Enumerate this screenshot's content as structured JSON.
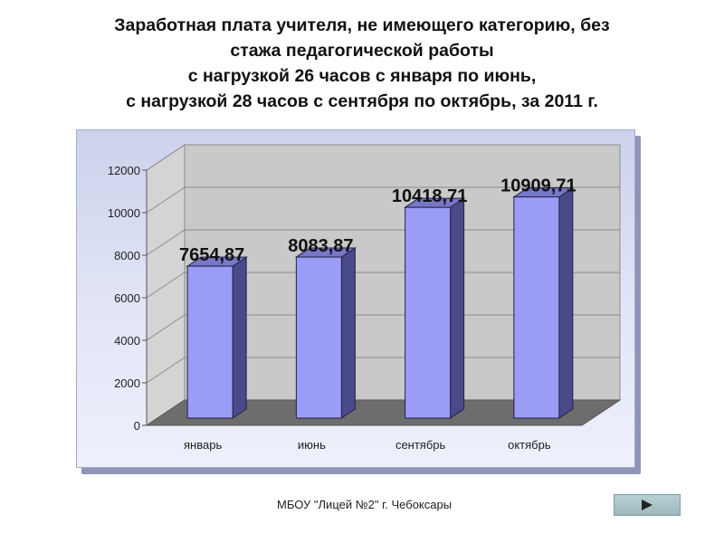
{
  "title_lines": [
    "Заработная плата учителя, не имеющего  категорию, без",
    "стажа педагогической работы",
    "с нагрузкой 26 часов с января по июнь,",
    "с нагрузкой 28 часов с сентября по октябрь, за 2011 г."
  ],
  "chart_data": {
    "type": "bar",
    "style": "3d-column",
    "categories": [
      "январь",
      "июнь",
      "сентябрь",
      "октябрь"
    ],
    "values": [
      7654.87,
      8083.87,
      10418.71,
      10909.71
    ],
    "value_labels": [
      "7654,87",
      "8083,87",
      "10418,71",
      "10909,71"
    ],
    "ylim": [
      0,
      12000
    ],
    "yticks": [
      0,
      2000,
      4000,
      6000,
      8000,
      10000,
      12000
    ],
    "grid": true,
    "legend": "none",
    "colors": {
      "bar_front": "#9b9cf6",
      "bar_side": "#4a4a8a",
      "bar_top": "#7777c8",
      "floor": "#6d6d6d",
      "wall": "#c9c9c9"
    }
  },
  "footer": {
    "text": "МБОУ \"Лицей №2\" г. Чебоксары",
    "next_icon": "play-arrow-icon"
  }
}
